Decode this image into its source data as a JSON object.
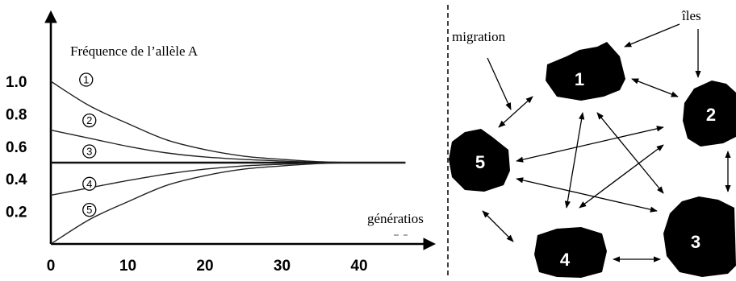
{
  "chart_data": {
    "type": "line",
    "ylabel": "Fréquence de l’allèle A",
    "xlabel": "génératios",
    "xlim": [
      0,
      46
    ],
    "ylim": [
      0,
      1.2
    ],
    "xticks": [
      "0",
      "10",
      "20",
      "30",
      "40"
    ],
    "yticks": [
      "0.2",
      "0.4",
      "0.6",
      "0.8",
      "1.0"
    ],
    "grid": false,
    "series": [
      {
        "name": "①",
        "x": [
          0,
          5,
          10,
          15,
          20,
          25,
          30,
          35,
          40,
          46
        ],
        "values": [
          1.0,
          0.85,
          0.74,
          0.64,
          0.58,
          0.54,
          0.52,
          0.505,
          0.5,
          0.5
        ]
      },
      {
        "name": "②",
        "x": [
          0,
          5,
          10,
          15,
          20,
          25,
          30,
          35,
          40,
          46
        ],
        "values": [
          0.7,
          0.65,
          0.6,
          0.56,
          0.535,
          0.52,
          0.51,
          0.502,
          0.5,
          0.5
        ]
      },
      {
        "name": "③",
        "x": [
          0,
          46
        ],
        "values": [
          0.5,
          0.5
        ]
      },
      {
        "name": "④",
        "x": [
          0,
          5,
          10,
          15,
          20,
          25,
          30,
          35,
          40,
          46
        ],
        "values": [
          0.3,
          0.345,
          0.39,
          0.43,
          0.46,
          0.48,
          0.49,
          0.498,
          0.5,
          0.5
        ]
      },
      {
        "name": "⑤",
        "x": [
          0,
          5,
          10,
          15,
          20,
          25,
          30,
          35,
          40,
          46
        ],
        "values": [
          0.0,
          0.15,
          0.26,
          0.36,
          0.42,
          0.46,
          0.48,
          0.495,
          0.5,
          0.5
        ]
      }
    ]
  },
  "diagram": {
    "migration_label": "migration",
    "iles_label": "îles",
    "islands": [
      {
        "id": "1",
        "label": "1"
      },
      {
        "id": "2",
        "label": "2"
      },
      {
        "id": "3",
        "label": "3"
      },
      {
        "id": "4",
        "label": "4"
      },
      {
        "id": "5",
        "label": "5"
      }
    ],
    "connections": [
      [
        "1",
        "2"
      ],
      [
        "1",
        "3"
      ],
      [
        "1",
        "4"
      ],
      [
        "2",
        "3"
      ],
      [
        "2",
        "4"
      ],
      [
        "2",
        "5"
      ],
      [
        "3",
        "5"
      ],
      [
        "4",
        "3"
      ],
      [
        "5",
        "4"
      ],
      [
        "5",
        "1"
      ]
    ]
  }
}
